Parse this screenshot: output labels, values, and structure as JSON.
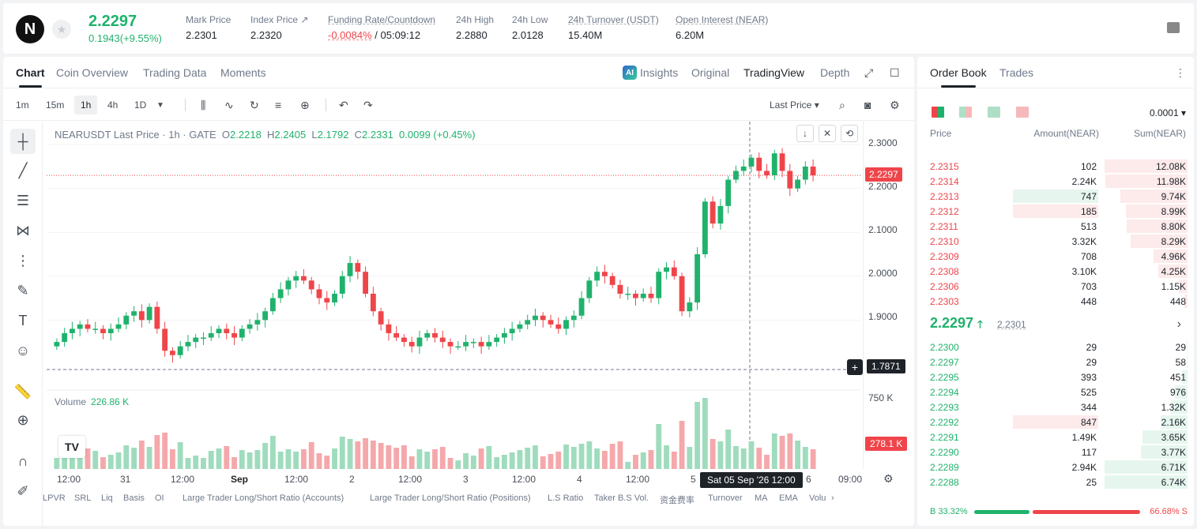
{
  "header": {
    "logo_letter": "N",
    "last_price": "2.2297",
    "change": "0.1943(+9.55%)",
    "stats": [
      {
        "label": "Mark Price",
        "value": "2.2301"
      },
      {
        "label": "Index Price ↗",
        "value": "2.2320"
      },
      {
        "label": "Funding Rate/Countdown",
        "value_neg": "-0.0084%",
        "value": " / 05:09:12"
      },
      {
        "label": "24h High",
        "value": "2.2880"
      },
      {
        "label": "24h Low",
        "value": "2.0128"
      },
      {
        "label": "24h Turnover (USDT)",
        "value": "15.40M"
      },
      {
        "label": "Open Interest (NEAR)",
        "value": "6.20M"
      }
    ]
  },
  "chart_tabs": [
    "Chart",
    "Coin Overview",
    "Trading Data",
    "Moments"
  ],
  "view_tabs": {
    "insights": "Insights",
    "original": "Original",
    "tradingview": "TradingView",
    "depth": "Depth"
  },
  "timeframes": [
    "1m",
    "15m",
    "1h",
    "4h",
    "1D"
  ],
  "price_type": "Last Price ▾",
  "ohlc": {
    "symbol": "NEARUSDT Last Price · 1h · GATE",
    "o": "2.2218",
    "h": "2.2405",
    "l": "2.1792",
    "c": "2.2331",
    "chg": "0.0099 (+0.45%)"
  },
  "volume": {
    "label": "Volume",
    "value": "226.86 K",
    "max_tick": "750 K",
    "last_tag": "278.1 K"
  },
  "y_ticks": [
    "2.3000",
    "2.2000",
    "2.1000",
    "2.0000",
    "1.9000"
  ],
  "last_price_tag": "2.2297",
  "cross_price_tag": "1.7871",
  "x_ticks": [
    "12:00",
    "31",
    "12:00",
    "Sep",
    "12:00",
    "2",
    "12:00",
    "3",
    "12:00",
    "4",
    "12:00",
    "5",
    "6",
    "09:00"
  ],
  "crosshair_date": "Sat 05 Sep '26    12:00",
  "indicators": [
    "LPVR",
    "SRL",
    "Liq",
    "Basis",
    "OI",
    "Large Trader Long/Short Ratio (Accounts)",
    "Large Trader Long/Short Ratio (Positions)",
    "L.S Ratio",
    "Taker B.S Vol.",
    "资金费率",
    "Turnover",
    "MA",
    "EMA",
    "Volu"
  ],
  "chart_data": {
    "type": "candlestick",
    "title": "NEARUSDT Last Price · 1h · GATE",
    "ylim": [
      1.78,
      2.32
    ],
    "candles_approx_close": [
      1.85,
      1.87,
      1.88,
      1.89,
      1.88,
      1.88,
      1.87,
      1.88,
      1.89,
      1.91,
      1.92,
      1.9,
      1.93,
      1.88,
      1.83,
      1.82,
      1.84,
      1.85,
      1.86,
      1.86,
      1.87,
      1.88,
      1.87,
      1.86,
      1.88,
      1.89,
      1.9,
      1.92,
      1.95,
      1.97,
      1.99,
      2.0,
      1.99,
      1.97,
      1.95,
      1.94,
      1.96,
      2.0,
      2.03,
      2.01,
      1.96,
      1.92,
      1.89,
      1.87,
      1.86,
      1.85,
      1.84,
      1.86,
      1.87,
      1.86,
      1.85,
      1.84,
      1.84,
      1.85,
      1.85,
      1.84,
      1.85,
      1.86,
      1.87,
      1.88,
      1.89,
      1.9,
      1.91,
      1.9,
      1.89,
      1.88,
      1.9,
      1.91,
      1.95,
      1.99,
      2.01,
      2.0,
      1.98,
      1.96,
      1.96,
      1.95,
      1.96,
      1.95,
      2.01,
      2.02,
      2.0,
      1.92,
      1.94,
      2.05,
      2.17,
      2.12,
      2.16,
      2.22,
      2.24,
      2.25,
      2.27,
      2.24,
      2.23,
      2.28,
      2.24,
      2.2,
      2.22,
      2.25,
      2.23
    ]
  },
  "orderbook": {
    "tabs": [
      "Order Book",
      "Trades"
    ],
    "precision": "0.0001 ▾",
    "headers": {
      "price": "Price",
      "amount": "Amount(NEAR)",
      "sum": "Sum(NEAR)"
    },
    "asks": [
      {
        "price": "2.2315",
        "amount": "102",
        "sum": "12.08K",
        "depth": 1.0,
        "hl": 0
      },
      {
        "price": "2.2314",
        "amount": "2.24K",
        "sum": "11.98K",
        "depth": 0.99,
        "hl": 0
      },
      {
        "price": "2.2313",
        "amount": "747",
        "sum": "9.74K",
        "depth": 0.81,
        "hl": 1
      },
      {
        "price": "2.2312",
        "amount": "185",
        "sum": "8.99K",
        "depth": 0.74,
        "hl": 2
      },
      {
        "price": "2.2311",
        "amount": "513",
        "sum": "8.80K",
        "depth": 0.73,
        "hl": 0
      },
      {
        "price": "2.2310",
        "amount": "3.32K",
        "sum": "8.29K",
        "depth": 0.69,
        "hl": 0
      },
      {
        "price": "2.2309",
        "amount": "708",
        "sum": "4.96K",
        "depth": 0.41,
        "hl": 0
      },
      {
        "price": "2.2308",
        "amount": "3.10K",
        "sum": "4.25K",
        "depth": 0.35,
        "hl": 0
      },
      {
        "price": "2.2306",
        "amount": "703",
        "sum": "1.15K",
        "depth": 0.1,
        "hl": 0
      },
      {
        "price": "2.2303",
        "amount": "448",
        "sum": "448",
        "depth": 0.04,
        "hl": 0
      }
    ],
    "mid_price": "2.2297",
    "mid_mark": "2.2301",
    "bids": [
      {
        "price": "2.2300",
        "amount": "29",
        "sum": "29",
        "depth": 0.005,
        "hl": 0
      },
      {
        "price": "2.2297",
        "amount": "29",
        "sum": "58",
        "depth": 0.009,
        "hl": 0
      },
      {
        "price": "2.2295",
        "amount": "393",
        "sum": "451",
        "depth": 0.07,
        "hl": 0
      },
      {
        "price": "2.2294",
        "amount": "525",
        "sum": "976",
        "depth": 0.15,
        "hl": 0
      },
      {
        "price": "2.2293",
        "amount": "344",
        "sum": "1.32K",
        "depth": 0.2,
        "hl": 0
      },
      {
        "price": "2.2292",
        "amount": "847",
        "sum": "2.16K",
        "depth": 0.32,
        "hl": 2
      },
      {
        "price": "2.2291",
        "amount": "1.49K",
        "sum": "3.65K",
        "depth": 0.54,
        "hl": 0
      },
      {
        "price": "2.2290",
        "amount": "117",
        "sum": "3.77K",
        "depth": 0.56,
        "hl": 0
      },
      {
        "price": "2.2289",
        "amount": "2.94K",
        "sum": "6.71K",
        "depth": 1.0,
        "hl": 0
      },
      {
        "price": "2.2288",
        "amount": "25",
        "sum": "6.74K",
        "depth": 1.0,
        "hl": 0
      }
    ],
    "buy_ratio": "B 33.32%",
    "sell_ratio": "66.68% S",
    "buy_fraction": 0.3332
  }
}
